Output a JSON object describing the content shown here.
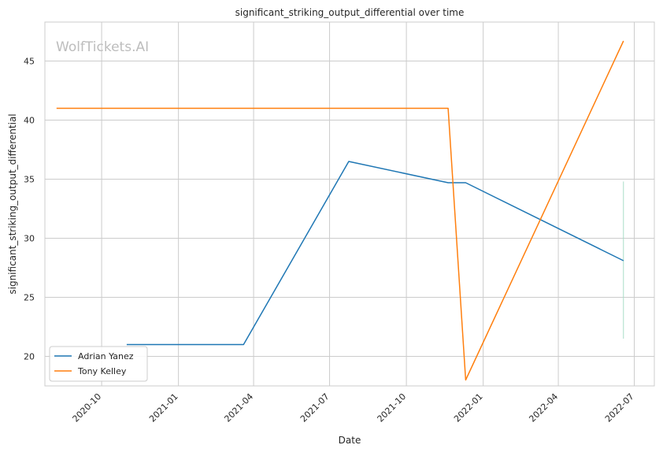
{
  "chart_data": {
    "type": "line",
    "title": "significant_striking_output_differential over time",
    "xlabel": "Date",
    "ylabel": "significant_striking_output_differential",
    "watermark": "WolfTickets.AI",
    "x_ticks": [
      "2020-10",
      "2021-01",
      "2021-04",
      "2021-07",
      "2021-10",
      "2022-01",
      "2022-04",
      "2022-07"
    ],
    "y_ticks": [
      20,
      25,
      30,
      35,
      40,
      45
    ],
    "xlim": [
      "2020-07-25",
      "2022-07-25"
    ],
    "ylim": [
      17.5,
      48.3
    ],
    "grid": true,
    "legend_position": "lower-left",
    "series": [
      {
        "name": "Adrian Yanez",
        "color": "#1f77b4",
        "points": [
          {
            "x": "2020-10-31",
            "y": 21.0
          },
          {
            "x": "2021-03-20",
            "y": 21.0
          },
          {
            "x": "2021-07-24",
            "y": 36.5
          },
          {
            "x": "2021-11-20",
            "y": 34.7
          },
          {
            "x": "2021-12-11",
            "y": 34.7
          },
          {
            "x": "2022-06-18",
            "y": 28.1
          }
        ]
      },
      {
        "name": "Tony Kelley",
        "color": "#ff7f0e",
        "points": [
          {
            "x": "2020-08-08",
            "y": 41.0
          },
          {
            "x": "2021-11-20",
            "y": 41.0
          },
          {
            "x": "2021-12-11",
            "y": 18.0
          },
          {
            "x": "2022-06-18",
            "y": 46.7
          }
        ]
      }
    ],
    "annotations": [
      {
        "type": "vertical-band",
        "x": "2022-06-18",
        "y_range": [
          21.5,
          34.8
        ],
        "color": "#a8dcc8"
      }
    ]
  }
}
